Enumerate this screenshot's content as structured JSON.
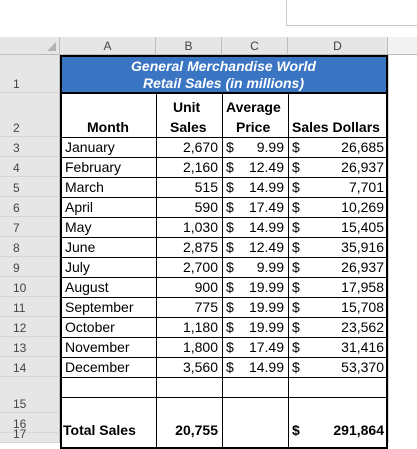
{
  "columns": [
    "A",
    "B",
    "C",
    "D"
  ],
  "row_numbers": [
    "1",
    "2",
    "3",
    "4",
    "5",
    "6",
    "7",
    "8",
    "9",
    "10",
    "11",
    "12",
    "13",
    "14",
    "15",
    "16",
    "17"
  ],
  "title": {
    "line1": "General Merchandise World",
    "line2": "Retail Sales (in millions)"
  },
  "headers": {
    "month": "Month",
    "units_1": "Unit",
    "units_2": "Sales",
    "price_1": "Average",
    "price_2": "Price",
    "dollars": "Sales Dollars"
  },
  "rows": [
    {
      "month": "January",
      "units": "2,670",
      "price": "9.99",
      "dollars": "26,685"
    },
    {
      "month": "February",
      "units": "2,160",
      "price": "12.49",
      "dollars": "26,937"
    },
    {
      "month": "March",
      "units": "515",
      "price": "14.99",
      "dollars": "7,701"
    },
    {
      "month": "April",
      "units": "590",
      "price": "17.49",
      "dollars": "10,269"
    },
    {
      "month": "May",
      "units": "1,030",
      "price": "14.99",
      "dollars": "15,405"
    },
    {
      "month": "June",
      "units": "2,875",
      "price": "12.49",
      "dollars": "35,916"
    },
    {
      "month": "July",
      "units": "2,700",
      "price": "9.99",
      "dollars": "26,937"
    },
    {
      "month": "August",
      "units": "900",
      "price": "19.99",
      "dollars": "17,958"
    },
    {
      "month": "September",
      "units": "775",
      "price": "19.99",
      "dollars": "15,708"
    },
    {
      "month": "October",
      "units": "1,180",
      "price": "19.99",
      "dollars": "23,562"
    },
    {
      "month": "November",
      "units": "1,800",
      "price": "17.49",
      "dollars": "31,416"
    },
    {
      "month": "December",
      "units": "3,560",
      "price": "14.99",
      "dollars": "53,370"
    }
  ],
  "currency_symbol": "$",
  "total": {
    "label": "Total Sales",
    "units": "20,755",
    "dollars": "291,864"
  },
  "colors": {
    "title_fill": "#3a75c4",
    "header_fill": "#e6e6e6",
    "grid": "#d9d9d9"
  }
}
